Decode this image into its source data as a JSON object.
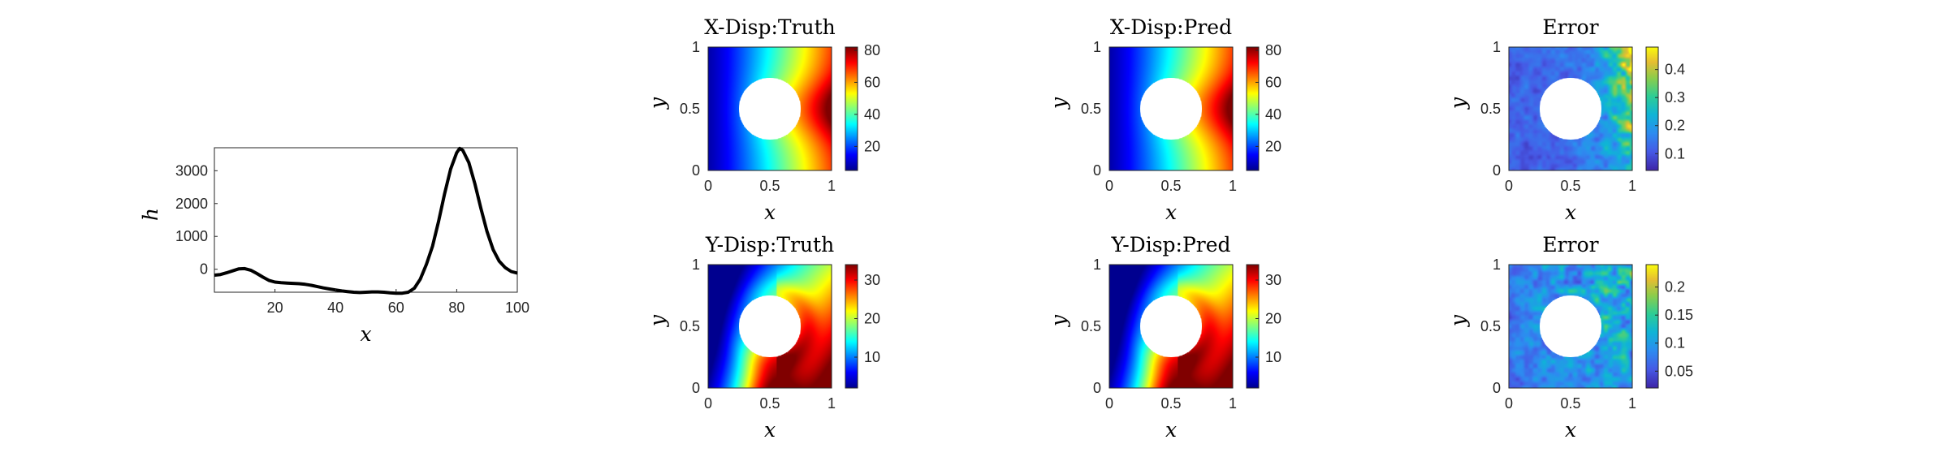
{
  "colors": {
    "axis": "#262626",
    "line": "#000000",
    "hole": "#ffffff"
  },
  "chart_data": [
    {
      "type": "line",
      "xlabel": "x",
      "ylabel": "h",
      "xlim": [
        0,
        100
      ],
      "ylim": [
        -700,
        3700
      ],
      "xticks": [
        "20",
        "40",
        "60",
        "80",
        "100"
      ],
      "yticks": [
        "0",
        "1000",
        "2000",
        "3000"
      ],
      "grid": false,
      "series": [
        {
          "x": [
            0,
            2,
            4,
            6,
            8,
            10,
            12,
            14,
            16,
            18,
            20,
            22,
            24,
            26,
            28,
            30,
            32,
            34,
            36,
            38,
            40,
            42,
            44,
            46,
            48,
            50,
            52,
            54,
            56,
            58,
            60,
            62,
            64,
            66,
            68,
            70,
            72,
            74,
            76,
            78,
            80,
            81,
            82,
            84,
            86,
            88,
            90,
            92,
            94,
            96,
            98,
            100
          ],
          "y": [
            -180,
            -160,
            -110,
            -50,
            10,
            20,
            -30,
            -130,
            -240,
            -340,
            -390,
            -410,
            -420,
            -430,
            -440,
            -460,
            -490,
            -530,
            -570,
            -600,
            -630,
            -660,
            -680,
            -700,
            -710,
            -700,
            -690,
            -690,
            -700,
            -720,
            -730,
            -730,
            -700,
            -580,
            -300,
            150,
            700,
            1450,
            2300,
            3050,
            3550,
            3680,
            3620,
            3250,
            2600,
            1850,
            1150,
            600,
            250,
            50,
            -70,
            -120
          ]
        }
      ]
    },
    {
      "type": "heatmap",
      "title": "X-Disp:Truth",
      "xlabel": "x",
      "ylabel": "y",
      "xticks": [
        "0",
        "0.5",
        "1"
      ],
      "yticks": [
        "0",
        "0.5",
        "1"
      ],
      "colormap": "jet",
      "clim": [
        5,
        82
      ],
      "colorbar_ticks": [
        20,
        40,
        60,
        80
      ],
      "hole": {
        "center": [
          0.5,
          0.5
        ],
        "radius": 0.25
      },
      "field": "x-displacement"
    },
    {
      "type": "heatmap",
      "title": "X-Disp:Pred",
      "xlabel": "x",
      "ylabel": "y",
      "xticks": [
        "0",
        "0.5",
        "1"
      ],
      "yticks": [
        "0",
        "0.5",
        "1"
      ],
      "colormap": "jet",
      "clim": [
        5,
        82
      ],
      "colorbar_ticks": [
        20,
        40,
        60,
        80
      ],
      "hole": {
        "center": [
          0.5,
          0.5
        ],
        "radius": 0.25
      },
      "field": "x-displacement"
    },
    {
      "type": "heatmap",
      "title": "Error",
      "xlabel": "x",
      "ylabel": "y",
      "xticks": [
        "0",
        "0.5",
        "1"
      ],
      "yticks": [
        "0",
        "0.5",
        "1"
      ],
      "colormap": "parula",
      "clim": [
        0.04,
        0.48
      ],
      "colorbar_ticks": [
        0.1,
        0.2,
        0.3,
        0.4
      ],
      "hole": {
        "center": [
          0.5,
          0.5
        ],
        "radius": 0.25
      },
      "field": "x-error"
    },
    {
      "type": "heatmap",
      "title": "Y-Disp:Truth",
      "xlabel": "x",
      "ylabel": "y",
      "xticks": [
        "0",
        "0.5",
        "1"
      ],
      "yticks": [
        "0",
        "0.5",
        "1"
      ],
      "colormap": "jet",
      "clim": [
        2,
        34
      ],
      "colorbar_ticks": [
        10,
        20,
        30
      ],
      "hole": {
        "center": [
          0.5,
          0.5
        ],
        "radius": 0.25
      },
      "field": "y-displacement"
    },
    {
      "type": "heatmap",
      "title": "Y-Disp:Pred",
      "xlabel": "x",
      "ylabel": "y",
      "xticks": [
        "0",
        "0.5",
        "1"
      ],
      "yticks": [
        "0",
        "0.5",
        "1"
      ],
      "colormap": "jet",
      "clim": [
        2,
        34
      ],
      "colorbar_ticks": [
        10,
        20,
        30
      ],
      "hole": {
        "center": [
          0.5,
          0.5
        ],
        "radius": 0.25
      },
      "field": "y-displacement"
    },
    {
      "type": "heatmap",
      "title": "Error",
      "xlabel": "x",
      "ylabel": "y",
      "xticks": [
        "0",
        "0.5",
        "1"
      ],
      "yticks": [
        "0",
        "0.5",
        "1"
      ],
      "colormap": "parula",
      "clim": [
        0.02,
        0.24
      ],
      "colorbar_ticks": [
        0.05,
        0.1,
        0.15,
        0.2
      ],
      "hole": {
        "center": [
          0.5,
          0.5
        ],
        "radius": 0.25
      },
      "field": "y-error"
    }
  ]
}
